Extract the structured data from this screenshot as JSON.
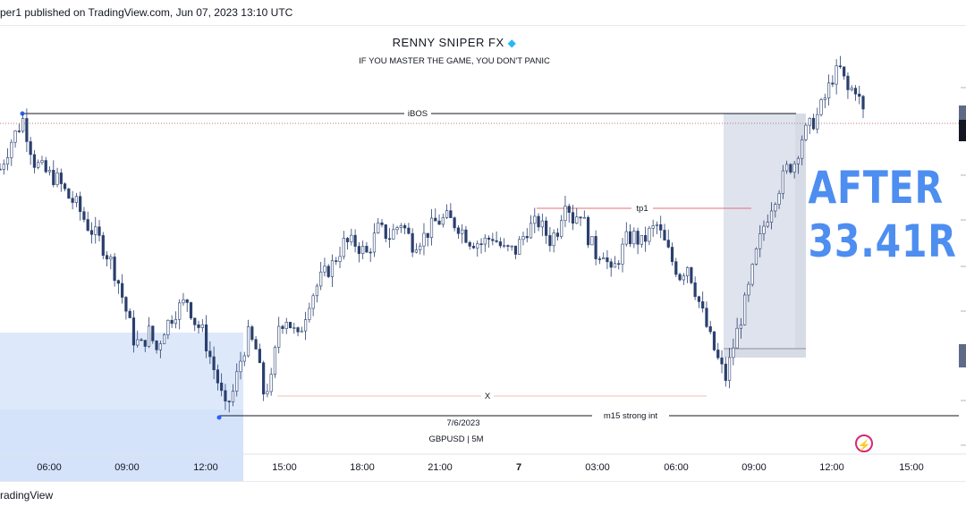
{
  "header": {
    "published_text": "per1 published on TradingView.com, Jun 07, 2023 13:10 UTC"
  },
  "chart_title": "RENNY SNIPER FX",
  "chart_title_icon": "gem-icon",
  "chart_subtitle": "IF YOU MASTER THE GAME, YOU DON'T PANIC",
  "overlay_text": [
    "AFTER",
    "33.41R"
  ],
  "footer": {
    "brand_text": "radingView"
  },
  "symbol_text": "GBPUSD | 5M",
  "date_label": "7/6/2023",
  "colors": {
    "candle": "#2a3f6e",
    "overlay_text": "#4d8ef0",
    "tp1_line": "#e0707a",
    "zone_blue": "#dde9fb",
    "zone_grey": "#c9cfdd",
    "accent_icon": "#d6296f"
  },
  "chart_data": {
    "type": "candlestick",
    "symbol": "GBPUSD",
    "timeframe": "5M",
    "x_ticks": [
      "06:00",
      "09:00",
      "12:00",
      "15:00",
      "18:00",
      "21:00",
      "7",
      "03:00",
      "06:00",
      "09:00",
      "12:00",
      "15:00"
    ],
    "levels": [
      {
        "label": "iBOS",
        "value": 92
      },
      {
        "label": "tp1",
        "value": 70
      },
      {
        "label": "X",
        "value": 18
      },
      {
        "label": "m15 strong int",
        "value": 10
      }
    ],
    "price_path": [
      [
        0,
        78
      ],
      [
        3,
        86
      ],
      [
        6,
        92
      ],
      [
        9,
        80
      ],
      [
        12,
        77
      ],
      [
        15,
        75
      ],
      [
        18,
        70
      ],
      [
        20,
        68
      ],
      [
        23,
        62
      ],
      [
        26,
        58
      ],
      [
        29,
        52
      ],
      [
        31,
        46
      ],
      [
        33,
        38
      ],
      [
        35,
        30
      ],
      [
        37,
        28
      ],
      [
        39,
        32
      ],
      [
        41,
        27
      ],
      [
        43,
        33
      ],
      [
        46,
        38
      ],
      [
        49,
        41
      ],
      [
        51,
        35
      ],
      [
        53,
        32
      ],
      [
        55,
        25
      ],
      [
        57,
        18
      ],
      [
        59,
        10
      ],
      [
        61,
        15
      ],
      [
        63,
        24
      ],
      [
        65,
        31
      ],
      [
        67,
        27
      ],
      [
        69,
        15
      ],
      [
        71,
        18
      ],
      [
        73,
        34
      ],
      [
        75,
        36
      ],
      [
        78,
        30
      ],
      [
        81,
        41
      ],
      [
        84,
        47
      ],
      [
        87,
        51
      ],
      [
        90,
        57
      ],
      [
        93,
        57
      ],
      [
        96,
        54
      ],
      [
        99,
        61
      ],
      [
        102,
        59
      ],
      [
        105,
        63
      ],
      [
        108,
        57
      ],
      [
        111,
        59
      ],
      [
        114,
        63
      ],
      [
        117,
        64
      ],
      [
        120,
        62
      ],
      [
        123,
        58
      ],
      [
        126,
        57
      ],
      [
        129,
        59
      ],
      [
        132,
        55
      ],
      [
        135,
        55
      ],
      [
        138,
        61
      ],
      [
        141,
        63
      ],
      [
        144,
        58
      ],
      [
        146,
        61
      ],
      [
        148,
        70
      ],
      [
        150,
        64
      ],
      [
        152,
        66
      ],
      [
        154,
        59
      ],
      [
        156,
        54
      ],
      [
        158,
        55
      ],
      [
        160,
        48
      ],
      [
        162,
        53
      ],
      [
        164,
        58
      ],
      [
        166,
        59
      ],
      [
        168,
        57
      ],
      [
        170,
        60
      ],
      [
        172,
        62
      ],
      [
        174,
        57
      ],
      [
        176,
        52
      ],
      [
        178,
        48
      ],
      [
        180,
        51
      ],
      [
        182,
        44
      ],
      [
        184,
        37
      ],
      [
        186,
        30
      ],
      [
        188,
        24
      ],
      [
        190,
        19
      ],
      [
        192,
        28
      ],
      [
        194,
        36
      ],
      [
        196,
        44
      ],
      [
        198,
        54
      ],
      [
        200,
        62
      ],
      [
        202,
        68
      ],
      [
        204,
        73
      ],
      [
        206,
        78
      ],
      [
        208,
        80
      ],
      [
        210,
        87
      ],
      [
        212,
        90
      ],
      [
        214,
        93
      ],
      [
        216,
        98
      ],
      [
        218,
        104
      ],
      [
        220,
        106
      ],
      [
        222,
        100
      ],
      [
        224,
        101
      ],
      [
        226,
        94
      ]
    ]
  }
}
